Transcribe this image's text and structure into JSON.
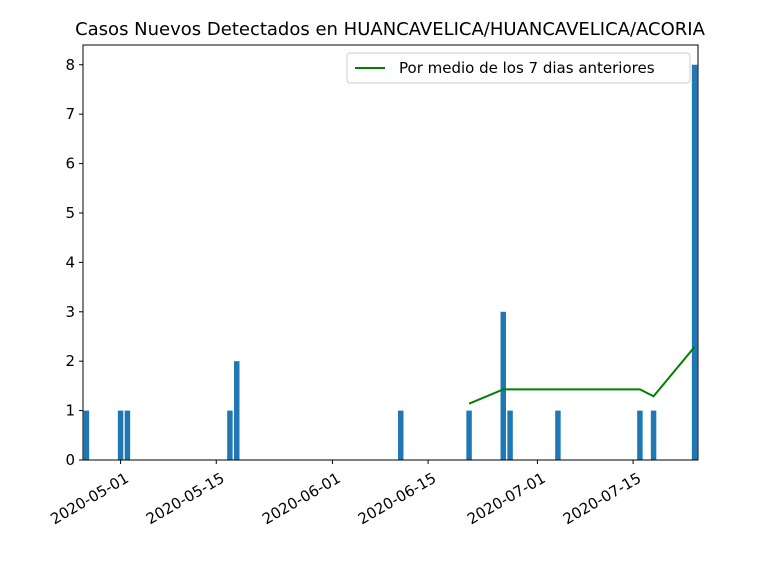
{
  "chart_data": {
    "type": "bar",
    "title": "Casos Nuevos Detectados en HUANCAVELICA/HUANCAVELICA/ACORIA",
    "xlabel": "",
    "ylabel": "",
    "ylim": [
      0,
      8.4
    ],
    "xlim": [
      "2020-04-26",
      "2020-07-24"
    ],
    "yticks": [
      0,
      1,
      2,
      3,
      4,
      5,
      6,
      7,
      8
    ],
    "xticks": [
      "2020-05-01",
      "2020-05-15",
      "2020-06-01",
      "2020-06-15",
      "2020-07-01",
      "2020-07-15"
    ],
    "bar_color": "#1f77b4",
    "line_color": "#008000",
    "legend_position": "top-right",
    "bars": [
      {
        "date": "2020-04-26",
        "value": 1
      },
      {
        "date": "2020-05-01",
        "value": 1
      },
      {
        "date": "2020-05-02",
        "value": 1
      },
      {
        "date": "2020-05-17",
        "value": 1
      },
      {
        "date": "2020-05-18",
        "value": 2
      },
      {
        "date": "2020-06-11",
        "value": 1
      },
      {
        "date": "2020-06-21",
        "value": 1
      },
      {
        "date": "2020-06-26",
        "value": 3
      },
      {
        "date": "2020-06-27",
        "value": 1
      },
      {
        "date": "2020-07-04",
        "value": 1
      },
      {
        "date": "2020-07-16",
        "value": 1
      },
      {
        "date": "2020-07-18",
        "value": 1
      },
      {
        "date": "2020-07-24",
        "value": 8
      }
    ],
    "series": [
      {
        "name": "Por medio de los 7 dias anteriores",
        "points": [
          {
            "date": "2020-06-21",
            "value": 1.14
          },
          {
            "date": "2020-06-26",
            "value": 1.43
          },
          {
            "date": "2020-07-16",
            "value": 1.43
          },
          {
            "date": "2020-07-18",
            "value": 1.29
          },
          {
            "date": "2020-07-24",
            "value": 2.29
          }
        ]
      }
    ]
  }
}
